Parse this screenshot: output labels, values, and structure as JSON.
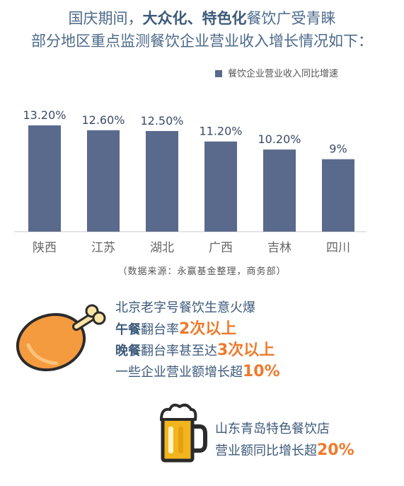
{
  "title": {
    "line1_prefix": "国庆期间，",
    "line1_bold": "大众化、特色化",
    "line1_suffix": "餐饮广受青睐",
    "line2": "部分地区重点监测餐饮企业营业收入增长情况如下："
  },
  "chart_data": {
    "type": "bar",
    "categories": [
      "陕西",
      "江苏",
      "湖北",
      "广西",
      "吉林",
      "四川"
    ],
    "series": [
      {
        "name": "餐饮企业营业收入同比增速",
        "values": [
          13.2,
          12.6,
          12.5,
          11.2,
          10.2,
          9.0
        ]
      }
    ],
    "data_labels": [
      "13.20%",
      "12.60%",
      "12.50%",
      "11.20%",
      "10.20%",
      "9%"
    ],
    "ylim": [
      0,
      16
    ],
    "grid": false,
    "legend_position": "top-right",
    "bar_color": "#5a6a8c"
  },
  "source": "（数据来源：永赢基金整理，商务部）",
  "info1": {
    "line1": "北京老字号餐饮生意火爆",
    "line2_bold": "午餐",
    "line2_text": "翻台率",
    "line2_hl": "2次以上",
    "line3_bold": "晚餐",
    "line3_text": "翻台率甚至达",
    "line3_hl": "3次以上",
    "line4_text": "一些企业营业额增长超",
    "line4_hl": "10%"
  },
  "info2": {
    "line1": "山东青岛特色餐饮店",
    "line2_text": "营业额同比增长超",
    "line2_hl": "20%"
  },
  "icons": {
    "food": "chicken-drumstick-icon",
    "drink": "beer-mug-icon"
  },
  "colors": {
    "accent": "#ee7a2c",
    "title": "#4d6a8a",
    "bar": "#5a6a8c",
    "drumstick": "#f49a3f",
    "beer": "#f2b51d"
  }
}
